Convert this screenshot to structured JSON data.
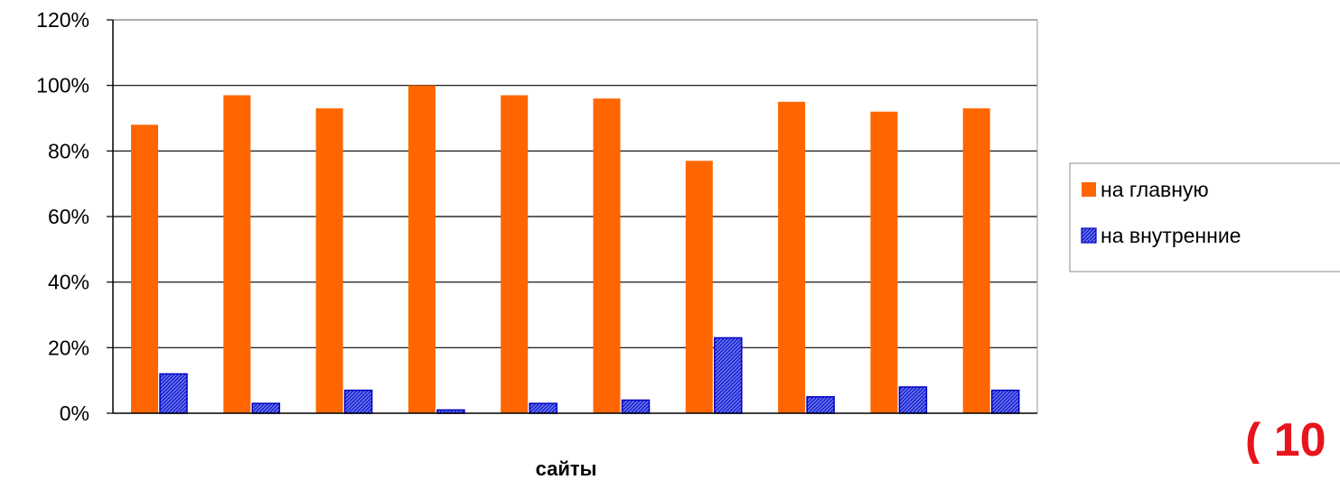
{
  "chart_data": {
    "type": "bar",
    "xlabel": "сайты",
    "ylabel": "",
    "ylim": [
      0,
      120
    ],
    "yticks": [
      "0%",
      "20%",
      "40%",
      "60%",
      "80%",
      "100%",
      "120%"
    ],
    "grid": "horizontal",
    "legend_position": "right",
    "categories": [
      "",
      "",
      "",
      "",
      "",
      "",
      "",
      "",
      "",
      ""
    ],
    "series": [
      {
        "name": "на главную",
        "color": "#ff6600",
        "pattern": "solid",
        "values": [
          88,
          97,
          93,
          100,
          97,
          96,
          77,
          95,
          92,
          93
        ]
      },
      {
        "name": "на внутренние",
        "color": "#1010e0",
        "pattern": "hatched",
        "values": [
          12,
          3,
          7,
          1,
          3,
          4,
          23,
          5,
          8,
          7
        ]
      }
    ]
  },
  "corner_note": "( 10"
}
